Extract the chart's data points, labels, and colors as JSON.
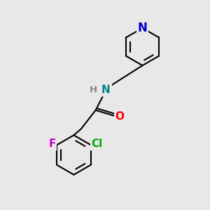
{
  "background_color": "#e8e8e8",
  "bond_color": "#000000",
  "atom_colors": {
    "N_pyridine": "#0000cc",
    "N_amide": "#008888",
    "O": "#ff0000",
    "F": "#cc00cc",
    "Cl": "#00aa00",
    "H": "#888888"
  },
  "font_size": 10,
  "bond_width": 1.5,
  "figsize": [
    3.0,
    3.0
  ],
  "dpi": 100
}
